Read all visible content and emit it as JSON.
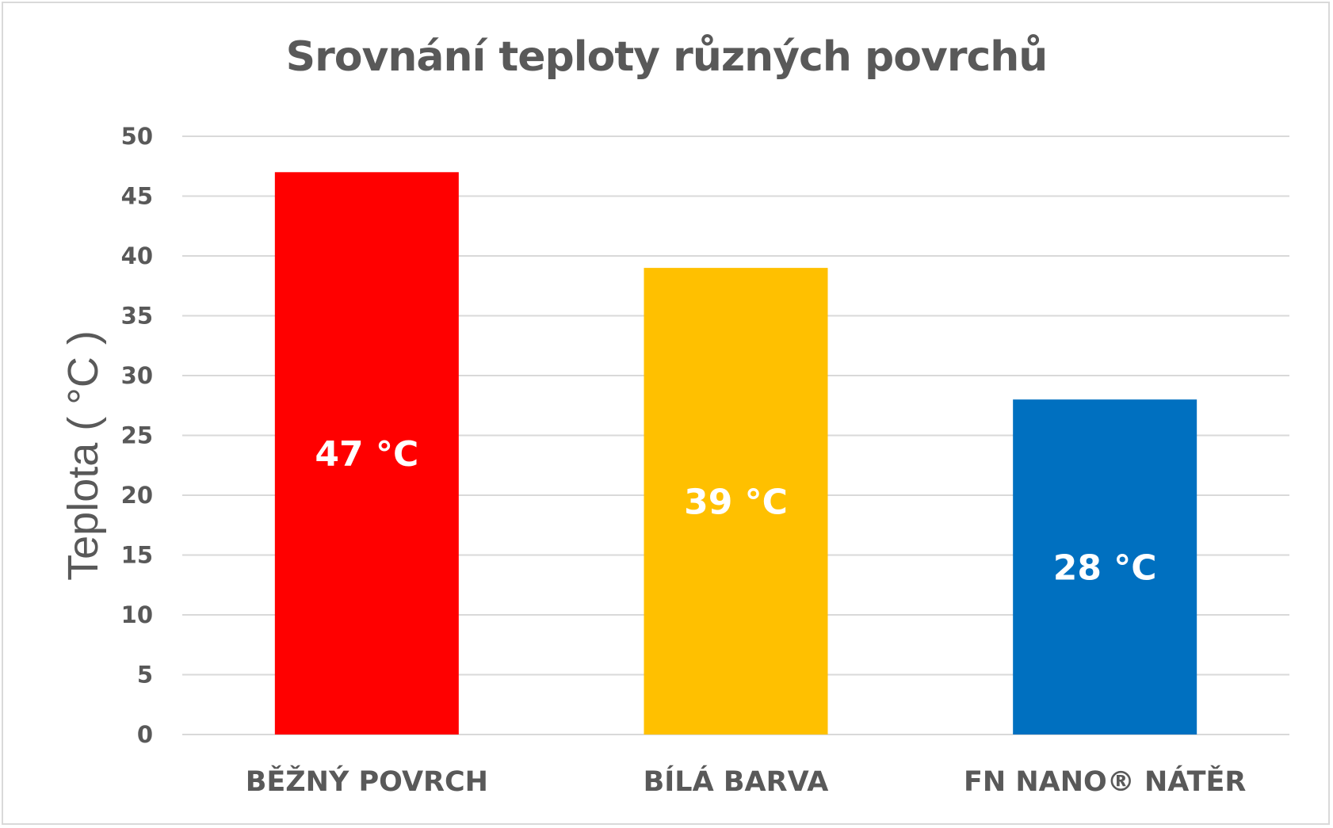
{
  "chart_data": {
    "type": "bar",
    "title": "Srovnání teploty různých povrchů",
    "xlabel": "",
    "ylabel": "Teplota ( °C )",
    "categories": [
      "BĚŽNÝ POVRCH",
      "BÍLÁ BARVA",
      "FN NANO® NÁTĚR"
    ],
    "values": [
      47,
      39,
      28
    ],
    "data_labels": [
      "47 °C",
      "39 °C",
      "28 °C"
    ],
    "bar_colors": [
      "#ff0000",
      "#ffc000",
      "#0070c0"
    ],
    "ylim": [
      0,
      50
    ],
    "yticks": [
      "0",
      "5",
      "10",
      "15",
      "20",
      "25",
      "30",
      "35",
      "40",
      "45",
      "50"
    ],
    "grid": true,
    "gridline_color": "#d9d9d9",
    "text_color": "#595959",
    "legend": "none"
  }
}
